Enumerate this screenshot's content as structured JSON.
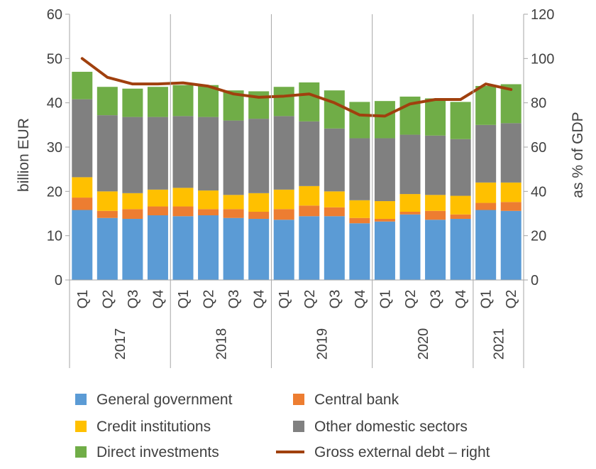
{
  "chart_data": {
    "type": "bar",
    "stacked": true,
    "title": "",
    "ylabel": "billion EUR",
    "y2label": "as % of GDP",
    "ylim": [
      0,
      60
    ],
    "yticks": [
      0,
      10,
      20,
      30,
      40,
      50,
      60
    ],
    "y2lim": [
      0,
      120
    ],
    "y2ticks": [
      0,
      20,
      40,
      60,
      80,
      100,
      120
    ],
    "grid": "vertical separators between years",
    "legend_position": "bottom",
    "categories": [
      "Q1",
      "Q2",
      "Q3",
      "Q4",
      "Q1",
      "Q2",
      "Q3",
      "Q4",
      "Q1",
      "Q2",
      "Q3",
      "Q4",
      "Q1",
      "Q2",
      "Q3",
      "Q4",
      "Q1",
      "Q2"
    ],
    "years": [
      {
        "label": "2017",
        "count": 4
      },
      {
        "label": "2018",
        "count": 4
      },
      {
        "label": "2019",
        "count": 4
      },
      {
        "label": "2020",
        "count": 4
      },
      {
        "label": "2021",
        "count": 2
      }
    ],
    "series": [
      {
        "name": "General government",
        "color": "#5b9bd5",
        "values": [
          15.8,
          14.0,
          13.8,
          14.6,
          14.4,
          14.6,
          14.0,
          13.8,
          13.6,
          14.4,
          14.4,
          12.8,
          13.2,
          14.8,
          13.6,
          13.8,
          15.8,
          15.6
        ]
      },
      {
        "name": "Central bank",
        "color": "#ed7d31",
        "values": [
          2.8,
          1.6,
          2.2,
          2.0,
          2.2,
          1.4,
          2.0,
          1.6,
          2.4,
          2.4,
          2.0,
          1.2,
          0.6,
          0.6,
          2.0,
          1.0,
          1.6,
          2.0
        ]
      },
      {
        "name": "Credit institutions",
        "color": "#ffc000",
        "values": [
          4.6,
          4.4,
          3.6,
          3.8,
          4.2,
          4.2,
          3.2,
          4.2,
          4.4,
          4.4,
          3.6,
          4.0,
          4.0,
          4.0,
          3.6,
          4.2,
          4.6,
          4.4
        ]
      },
      {
        "name": "Other domestic sectors",
        "color": "#808080",
        "values": [
          17.6,
          17.2,
          17.2,
          16.4,
          16.2,
          16.6,
          16.8,
          16.8,
          16.6,
          14.6,
          14.2,
          14.0,
          14.2,
          13.4,
          13.4,
          12.8,
          13.0,
          13.4
        ]
      },
      {
        "name": "Direct investments",
        "color": "#70ad47",
        "values": [
          6.2,
          6.4,
          6.4,
          6.8,
          7.0,
          7.2,
          6.8,
          6.2,
          6.6,
          8.8,
          8.6,
          8.2,
          8.4,
          8.6,
          8.4,
          8.4,
          8.8,
          8.8
        ]
      }
    ],
    "line": {
      "name": "Gross external debt – right",
      "color": "#a0400e",
      "axis": "right",
      "values": [
        100.0,
        91.5,
        88.5,
        88.5,
        89.0,
        87.5,
        84.0,
        82.5,
        83.0,
        84.0,
        80.0,
        74.5,
        74.0,
        79.5,
        81.5,
        81.5,
        88.5,
        86.0
      ]
    }
  }
}
